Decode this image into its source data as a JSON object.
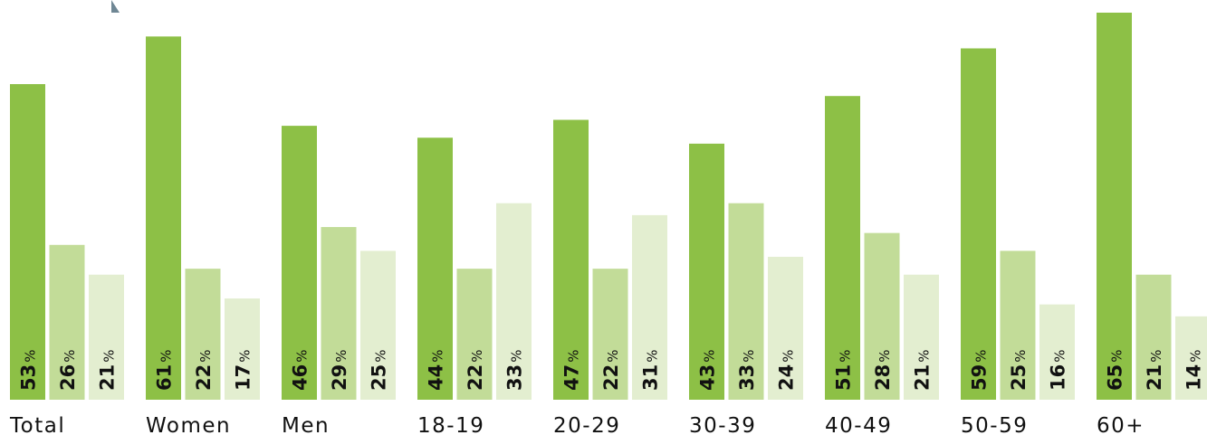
{
  "chart_data": {
    "type": "bar",
    "categories": [
      "Total",
      "Women",
      "Men",
      "18-19",
      "20-29",
      "30-39",
      "40-49",
      "50-59",
      "60+"
    ],
    "series": [
      {
        "values": [
          53,
          61,
          46,
          44,
          47,
          43,
          51,
          59,
          65
        ],
        "color": "#8dc046"
      },
      {
        "values": [
          26,
          22,
          29,
          22,
          22,
          33,
          28,
          25,
          21
        ],
        "color": "#c2dc98"
      },
      {
        "values": [
          21,
          17,
          25,
          33,
          31,
          24,
          21,
          16,
          14
        ],
        "color": "#e3eed0"
      }
    ],
    "value_suffix": "%",
    "ylim": [
      0,
      70
    ],
    "grid": false,
    "legend": "none"
  }
}
